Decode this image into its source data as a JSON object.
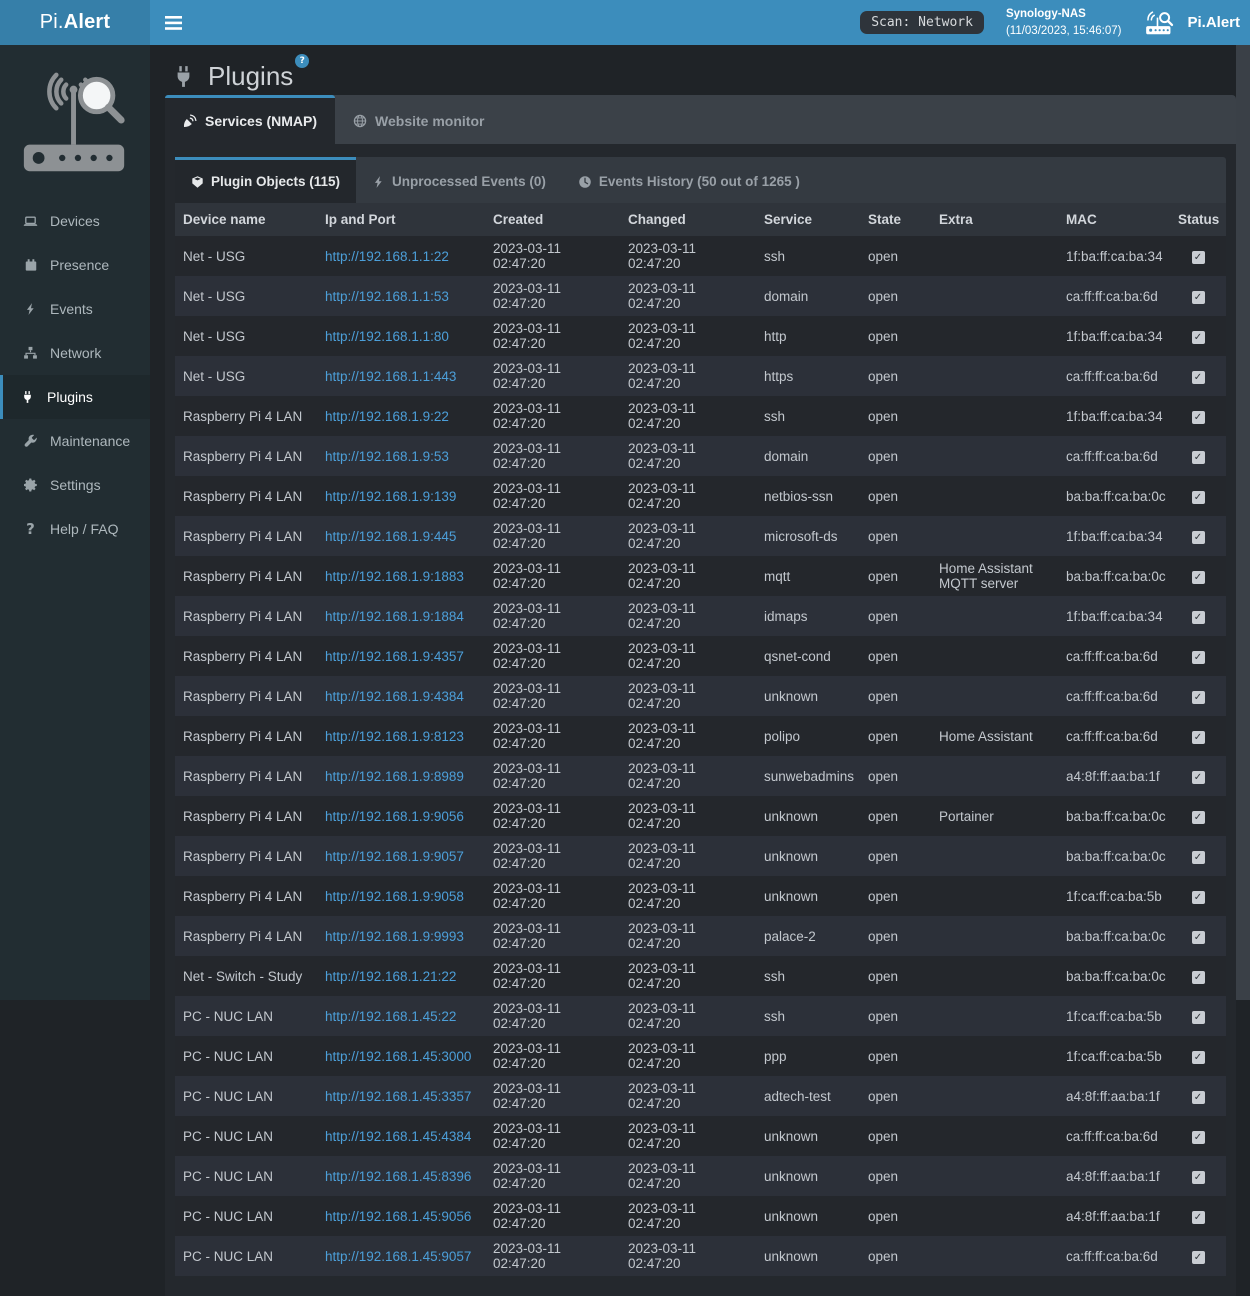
{
  "navbar": {
    "logo_pi": "Pi.",
    "logo_alert": "Alert",
    "scan_status": "Scan: Network",
    "device_name": "Synology-NAS",
    "timestamp": "(11/03/2023, 15:46:07)",
    "brand": "Pi.Alert"
  },
  "sidebar": {
    "items": [
      {
        "id": "devices",
        "label": "Devices",
        "icon": "laptop-icon",
        "active": false
      },
      {
        "id": "presence",
        "label": "Presence",
        "icon": "calendar-icon",
        "active": false
      },
      {
        "id": "events",
        "label": "Events",
        "icon": "bolt-icon",
        "active": false
      },
      {
        "id": "network",
        "label": "Network",
        "icon": "sitemap-icon",
        "active": false
      },
      {
        "id": "plugins",
        "label": "Plugins",
        "icon": "plug-icon",
        "active": true
      },
      {
        "id": "maintenance",
        "label": "Maintenance",
        "icon": "wrench-icon",
        "active": false
      },
      {
        "id": "settings",
        "label": "Settings",
        "icon": "gear-icon",
        "active": false
      },
      {
        "id": "help-faq",
        "label": "Help / FAQ",
        "icon": "question-icon",
        "active": false
      }
    ]
  },
  "page": {
    "title": "Plugins",
    "help_badge": "?",
    "tabs": [
      {
        "id": "services-nmap",
        "label": "Services (NMAP)",
        "icon": "satellite-dish-icon",
        "active": true
      },
      {
        "id": "website-monitor",
        "label": "Website monitor",
        "icon": "globe-icon",
        "active": false
      }
    ],
    "inner_tabs": [
      {
        "id": "plugin-objects",
        "label": "Plugin Objects (115)",
        "icon": "cube-icon",
        "active": true
      },
      {
        "id": "unprocessed-events",
        "label": "Unprocessed Events (0)",
        "icon": "bolt-icon",
        "active": false
      },
      {
        "id": "events-history",
        "label": "Events History (50 out of 1265 )",
        "icon": "clock-icon",
        "active": false
      }
    ]
  },
  "table": {
    "columns": [
      "Device name",
      "Ip and Port",
      "Created",
      "Changed",
      "Service",
      "State",
      "Extra",
      "MAC",
      "Status"
    ],
    "rows": [
      {
        "device": "Net - USG",
        "url": "http://192.168.1.1:22",
        "created": "2023-03-11 02:47:20",
        "changed": "2023-03-11 02:47:20",
        "service": "ssh",
        "state": "open",
        "extra": "",
        "mac": "1f:ba:ff:ca:ba:34",
        "checked": true
      },
      {
        "device": "Net - USG",
        "url": "http://192.168.1.1:53",
        "created": "2023-03-11 02:47:20",
        "changed": "2023-03-11 02:47:20",
        "service": "domain",
        "state": "open",
        "extra": "",
        "mac": "ca:ff:ff:ca:ba:6d",
        "checked": true
      },
      {
        "device": "Net - USG",
        "url": "http://192.168.1.1:80",
        "created": "2023-03-11 02:47:20",
        "changed": "2023-03-11 02:47:20",
        "service": "http",
        "state": "open",
        "extra": "",
        "mac": "1f:ba:ff:ca:ba:34",
        "checked": true
      },
      {
        "device": "Net - USG",
        "url": "http://192.168.1.1:443",
        "created": "2023-03-11 02:47:20",
        "changed": "2023-03-11 02:47:20",
        "service": "https",
        "state": "open",
        "extra": "",
        "mac": "ca:ff:ff:ca:ba:6d",
        "checked": true
      },
      {
        "device": "Raspberry Pi 4 LAN",
        "url": "http://192.168.1.9:22",
        "created": "2023-03-11 02:47:20",
        "changed": "2023-03-11 02:47:20",
        "service": "ssh",
        "state": "open",
        "extra": "",
        "mac": "1f:ba:ff:ca:ba:34",
        "checked": true
      },
      {
        "device": "Raspberry Pi 4 LAN",
        "url": "http://192.168.1.9:53",
        "created": "2023-03-11 02:47:20",
        "changed": "2023-03-11 02:47:20",
        "service": "domain",
        "state": "open",
        "extra": "",
        "mac": "ca:ff:ff:ca:ba:6d",
        "checked": true
      },
      {
        "device": "Raspberry Pi 4 LAN",
        "url": "http://192.168.1.9:139",
        "created": "2023-03-11 02:47:20",
        "changed": "2023-03-11 02:47:20",
        "service": "netbios-ssn",
        "state": "open",
        "extra": "",
        "mac": "ba:ba:ff:ca:ba:0c",
        "checked": true
      },
      {
        "device": "Raspberry Pi 4 LAN",
        "url": "http://192.168.1.9:445",
        "created": "2023-03-11 02:47:20",
        "changed": "2023-03-11 02:47:20",
        "service": "microsoft-ds",
        "state": "open",
        "extra": "",
        "mac": "1f:ba:ff:ca:ba:34",
        "checked": true
      },
      {
        "device": "Raspberry Pi 4 LAN",
        "url": "http://192.168.1.9:1883",
        "created": "2023-03-11 02:47:20",
        "changed": "2023-03-11 02:47:20",
        "service": "mqtt",
        "state": "open",
        "extra": "Home Assistant MQTT server",
        "mac": "ba:ba:ff:ca:ba:0c",
        "checked": true
      },
      {
        "device": "Raspberry Pi 4 LAN",
        "url": "http://192.168.1.9:1884",
        "created": "2023-03-11 02:47:20",
        "changed": "2023-03-11 02:47:20",
        "service": "idmaps",
        "state": "open",
        "extra": "",
        "mac": "1f:ba:ff:ca:ba:34",
        "checked": true
      },
      {
        "device": "Raspberry Pi 4 LAN",
        "url": "http://192.168.1.9:4357",
        "created": "2023-03-11 02:47:20",
        "changed": "2023-03-11 02:47:20",
        "service": "qsnet-cond",
        "state": "open",
        "extra": "",
        "mac": "ca:ff:ff:ca:ba:6d",
        "checked": true
      },
      {
        "device": "Raspberry Pi 4 LAN",
        "url": "http://192.168.1.9:4384",
        "created": "2023-03-11 02:47:20",
        "changed": "2023-03-11 02:47:20",
        "service": "unknown",
        "state": "open",
        "extra": "",
        "mac": "ca:ff:ff:ca:ba:6d",
        "checked": true
      },
      {
        "device": "Raspberry Pi 4 LAN",
        "url": "http://192.168.1.9:8123",
        "created": "2023-03-11 02:47:20",
        "changed": "2023-03-11 02:47:20",
        "service": "polipo",
        "state": "open",
        "extra": "Home Assistant",
        "mac": "ca:ff:ff:ca:ba:6d",
        "checked": true
      },
      {
        "device": "Raspberry Pi 4 LAN",
        "url": "http://192.168.1.9:8989",
        "created": "2023-03-11 02:47:20",
        "changed": "2023-03-11 02:47:20",
        "service": "sunwebadmins",
        "state": "open",
        "extra": "",
        "mac": "a4:8f:ff:aa:ba:1f",
        "checked": true
      },
      {
        "device": "Raspberry Pi 4 LAN",
        "url": "http://192.168.1.9:9056",
        "created": "2023-03-11 02:47:20",
        "changed": "2023-03-11 02:47:20",
        "service": "unknown",
        "state": "open",
        "extra": "Portainer",
        "mac": "ba:ba:ff:ca:ba:0c",
        "checked": true
      },
      {
        "device": "Raspberry Pi 4 LAN",
        "url": "http://192.168.1.9:9057",
        "created": "2023-03-11 02:47:20",
        "changed": "2023-03-11 02:47:20",
        "service": "unknown",
        "state": "open",
        "extra": "",
        "mac": "ba:ba:ff:ca:ba:0c",
        "checked": true
      },
      {
        "device": "Raspberry Pi 4 LAN",
        "url": "http://192.168.1.9:9058",
        "created": "2023-03-11 02:47:20",
        "changed": "2023-03-11 02:47:20",
        "service": "unknown",
        "state": "open",
        "extra": "",
        "mac": "1f:ca:ff:ca:ba:5b",
        "checked": true
      },
      {
        "device": "Raspberry Pi 4 LAN",
        "url": "http://192.168.1.9:9993",
        "created": "2023-03-11 02:47:20",
        "changed": "2023-03-11 02:47:20",
        "service": "palace-2",
        "state": "open",
        "extra": "",
        "mac": "ba:ba:ff:ca:ba:0c",
        "checked": true
      },
      {
        "device": "Net - Switch - Study",
        "url": "http://192.168.1.21:22",
        "created": "2023-03-11 02:47:20",
        "changed": "2023-03-11 02:47:20",
        "service": "ssh",
        "state": "open",
        "extra": "",
        "mac": "ba:ba:ff:ca:ba:0c",
        "checked": true
      },
      {
        "device": "PC - NUC LAN",
        "url": "http://192.168.1.45:22",
        "created": "2023-03-11 02:47:20",
        "changed": "2023-03-11 02:47:20",
        "service": "ssh",
        "state": "open",
        "extra": "",
        "mac": "1f:ca:ff:ca:ba:5b",
        "checked": true
      },
      {
        "device": "PC - NUC LAN",
        "url": "http://192.168.1.45:3000",
        "created": "2023-03-11 02:47:20",
        "changed": "2023-03-11 02:47:20",
        "service": "ppp",
        "state": "open",
        "extra": "",
        "mac": "1f:ca:ff:ca:ba:5b",
        "checked": true
      },
      {
        "device": "PC - NUC LAN",
        "url": "http://192.168.1.45:3357",
        "created": "2023-03-11 02:47:20",
        "changed": "2023-03-11 02:47:20",
        "service": "adtech-test",
        "state": "open",
        "extra": "",
        "mac": "a4:8f:ff:aa:ba:1f",
        "checked": true
      },
      {
        "device": "PC - NUC LAN",
        "url": "http://192.168.1.45:4384",
        "created": "2023-03-11 02:47:20",
        "changed": "2023-03-11 02:47:20",
        "service": "unknown",
        "state": "open",
        "extra": "",
        "mac": "ca:ff:ff:ca:ba:6d",
        "checked": true
      },
      {
        "device": "PC - NUC LAN",
        "url": "http://192.168.1.45:8396",
        "created": "2023-03-11 02:47:20",
        "changed": "2023-03-11 02:47:20",
        "service": "unknown",
        "state": "open",
        "extra": "",
        "mac": "a4:8f:ff:aa:ba:1f",
        "checked": true
      },
      {
        "device": "PC - NUC LAN",
        "url": "http://192.168.1.45:9056",
        "created": "2023-03-11 02:47:20",
        "changed": "2023-03-11 02:47:20",
        "service": "unknown",
        "state": "open",
        "extra": "",
        "mac": "a4:8f:ff:aa:ba:1f",
        "checked": true
      },
      {
        "device": "PC - NUC LAN",
        "url": "http://192.168.1.45:9057",
        "created": "2023-03-11 02:47:20",
        "changed": "2023-03-11 02:47:20",
        "service": "unknown",
        "state": "open",
        "extra": "",
        "mac": "ca:ff:ff:ca:ba:6d",
        "checked": true
      }
    ],
    "checkmark": "✓"
  },
  "colors": {
    "accent": "#3c8dbc",
    "navbar": "#3c8dbc",
    "logo_bg": "#367fa9",
    "sidebar_bg": "#222d32",
    "panel_bg": "#24282d",
    "link": "#4c9fd9"
  }
}
